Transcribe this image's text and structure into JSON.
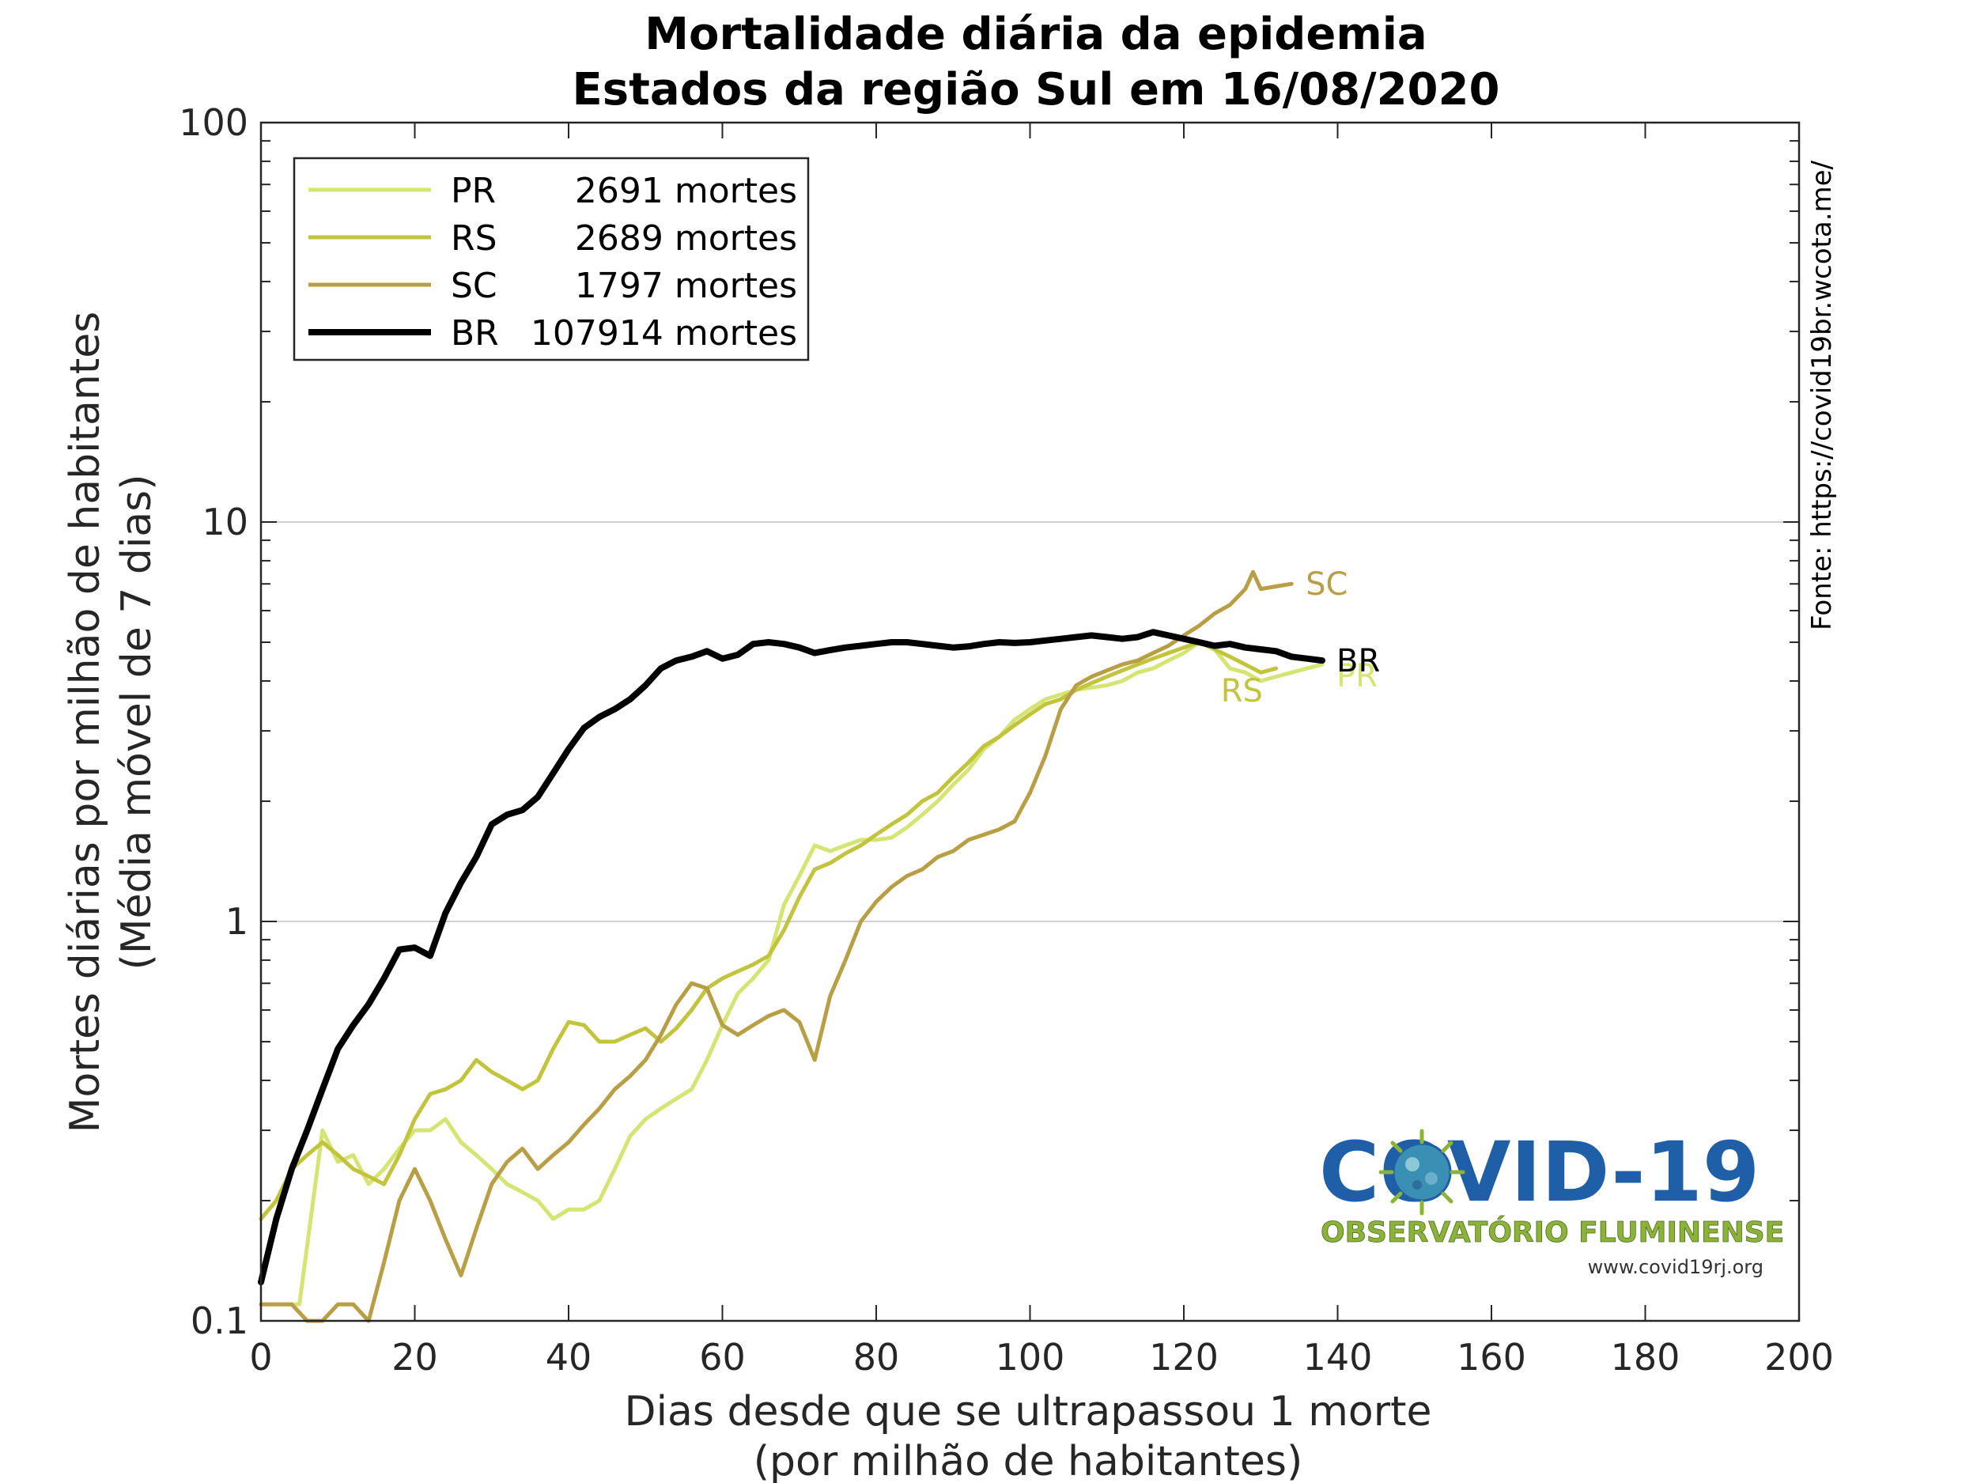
{
  "chart_data": {
    "type": "line",
    "title": "Mortalidade diária da epidemia",
    "subtitle": "Estados da região Sul em 16/08/2020",
    "xlabel": "Dias desde que se ultrapassou 1 morte",
    "xlabel2": "(por milhão de habitantes)",
    "ylabel": "Mortes diárias por milhão de habitantes",
    "ylabel2": "(Média móvel de 7 dias)",
    "xlim": [
      0,
      200
    ],
    "ylim": [
      0.1,
      100
    ],
    "yscale": "log",
    "xticks": [
      0,
      20,
      40,
      60,
      80,
      100,
      120,
      140,
      160,
      180,
      200
    ],
    "xtick_labels": [
      "0",
      "20",
      "40",
      "60",
      "80",
      "100",
      "120",
      "140",
      "160",
      "180",
      "200"
    ],
    "yticks": [
      0.1,
      1,
      10,
      100
    ],
    "ytick_labels": [
      "0.1",
      "1",
      "10",
      "100"
    ],
    "grid": "horizontal major lines",
    "legend_position": "top-left",
    "source": "Fonte: https://covid19br.wcota.me/",
    "series": [
      {
        "name": "PR",
        "legend_label": "PR",
        "legend_count": "2691 mortes",
        "end_label": "PR",
        "color": "#d4e573",
        "x": [
          0,
          5,
          8,
          10,
          12,
          14,
          16,
          18,
          20,
          22,
          24,
          26,
          28,
          30,
          32,
          34,
          36,
          38,
          40,
          42,
          44,
          46,
          48,
          50,
          52,
          54,
          56,
          58,
          60,
          62,
          64,
          66,
          68,
          70,
          72,
          74,
          76,
          78,
          80,
          82,
          84,
          86,
          88,
          90,
          92,
          94,
          96,
          98,
          100,
          102,
          104,
          106,
          108,
          110,
          112,
          114,
          116,
          118,
          120,
          122,
          124,
          126,
          128,
          130,
          132,
          134,
          136,
          138
        ],
        "values": [
          0.11,
          0.11,
          0.3,
          0.25,
          0.26,
          0.22,
          0.24,
          0.27,
          0.3,
          0.3,
          0.32,
          0.28,
          0.26,
          0.24,
          0.22,
          0.21,
          0.2,
          0.18,
          0.19,
          0.19,
          0.2,
          0.24,
          0.29,
          0.32,
          0.34,
          0.36,
          0.38,
          0.45,
          0.55,
          0.66,
          0.72,
          0.8,
          1.1,
          1.3,
          1.55,
          1.5,
          1.55,
          1.6,
          1.6,
          1.62,
          1.72,
          1.85,
          2.0,
          2.2,
          2.4,
          2.7,
          2.9,
          3.2,
          3.4,
          3.6,
          3.7,
          3.8,
          3.85,
          3.9,
          4.0,
          4.2,
          4.3,
          4.5,
          4.7,
          5.0,
          4.8,
          4.3,
          4.2,
          4.0,
          4.1,
          4.2,
          4.3,
          4.4
        ]
      },
      {
        "name": "RS",
        "legend_label": "RS",
        "legend_count": "2689 mortes",
        "end_label": "RS",
        "color": "#c2c43e",
        "x": [
          0,
          2,
          4,
          6,
          8,
          10,
          12,
          14,
          16,
          18,
          20,
          22,
          24,
          26,
          28,
          30,
          32,
          34,
          36,
          38,
          40,
          42,
          44,
          46,
          48,
          50,
          52,
          54,
          56,
          58,
          60,
          62,
          64,
          66,
          68,
          70,
          72,
          74,
          76,
          78,
          80,
          82,
          84,
          86,
          88,
          90,
          92,
          94,
          96,
          98,
          100,
          102,
          104,
          106,
          108,
          110,
          112,
          114,
          116,
          118,
          120,
          122,
          124,
          126,
          128,
          130,
          132
        ],
        "values": [
          0.18,
          0.2,
          0.24,
          0.26,
          0.28,
          0.26,
          0.24,
          0.23,
          0.22,
          0.26,
          0.32,
          0.37,
          0.38,
          0.4,
          0.45,
          0.42,
          0.4,
          0.38,
          0.4,
          0.48,
          0.56,
          0.55,
          0.5,
          0.5,
          0.52,
          0.54,
          0.5,
          0.54,
          0.6,
          0.68,
          0.72,
          0.75,
          0.78,
          0.82,
          0.95,
          1.15,
          1.35,
          1.4,
          1.48,
          1.55,
          1.65,
          1.75,
          1.85,
          2.0,
          2.1,
          2.3,
          2.5,
          2.75,
          2.9,
          3.1,
          3.3,
          3.5,
          3.6,
          3.8,
          3.95,
          4.1,
          4.25,
          4.4,
          4.55,
          4.7,
          4.85,
          5.0,
          4.8,
          4.6,
          4.4,
          4.2,
          4.3
        ]
      },
      {
        "name": "SC",
        "legend_label": "SC",
        "legend_count": "1797 mortes",
        "end_label": "SC",
        "color": "#b89f45",
        "x": [
          0,
          2,
          4,
          6,
          8,
          10,
          12,
          14,
          16,
          18,
          20,
          22,
          24,
          26,
          28,
          30,
          32,
          34,
          36,
          38,
          40,
          42,
          44,
          46,
          48,
          50,
          52,
          54,
          56,
          58,
          60,
          62,
          64,
          66,
          68,
          70,
          72,
          74,
          76,
          78,
          80,
          82,
          84,
          86,
          88,
          90,
          92,
          94,
          96,
          98,
          100,
          102,
          104,
          106,
          108,
          110,
          112,
          114,
          116,
          118,
          120,
          122,
          124,
          126,
          128,
          129,
          130,
          132,
          134
        ],
        "values": [
          0.11,
          0.11,
          0.11,
          0.1,
          0.1,
          0.11,
          0.11,
          0.1,
          0.14,
          0.2,
          0.24,
          0.2,
          0.16,
          0.13,
          0.17,
          0.22,
          0.25,
          0.27,
          0.24,
          0.26,
          0.28,
          0.31,
          0.34,
          0.38,
          0.41,
          0.45,
          0.52,
          0.62,
          0.7,
          0.68,
          0.55,
          0.52,
          0.55,
          0.58,
          0.6,
          0.56,
          0.45,
          0.65,
          0.8,
          1.0,
          1.12,
          1.22,
          1.3,
          1.35,
          1.45,
          1.5,
          1.6,
          1.65,
          1.7,
          1.78,
          2.1,
          2.6,
          3.4,
          3.9,
          4.1,
          4.25,
          4.4,
          4.5,
          4.7,
          4.9,
          5.2,
          5.5,
          5.9,
          6.2,
          6.8,
          7.5,
          6.8,
          6.9,
          7.0
        ]
      },
      {
        "name": "BR",
        "legend_label": "BR",
        "legend_count": "107914 mortes",
        "end_label": "BR",
        "color": "#000000",
        "x": [
          0,
          2,
          4,
          6,
          8,
          10,
          12,
          14,
          16,
          18,
          20,
          22,
          24,
          26,
          28,
          30,
          32,
          34,
          36,
          38,
          40,
          42,
          44,
          46,
          48,
          50,
          52,
          54,
          56,
          58,
          60,
          62,
          64,
          66,
          68,
          70,
          72,
          74,
          76,
          78,
          80,
          82,
          84,
          86,
          88,
          90,
          92,
          94,
          96,
          98,
          100,
          102,
          104,
          106,
          108,
          110,
          112,
          114,
          116,
          118,
          120,
          122,
          124,
          126,
          128,
          130,
          132,
          134,
          136,
          138
        ],
        "values": [
          0.125,
          0.18,
          0.24,
          0.3,
          0.38,
          0.48,
          0.55,
          0.62,
          0.72,
          0.85,
          0.86,
          0.82,
          1.05,
          1.25,
          1.45,
          1.75,
          1.85,
          1.9,
          2.05,
          2.35,
          2.7,
          3.05,
          3.25,
          3.4,
          3.6,
          3.9,
          4.3,
          4.5,
          4.6,
          4.75,
          4.55,
          4.65,
          4.95,
          5.0,
          4.95,
          4.85,
          4.7,
          4.78,
          4.85,
          4.9,
          4.95,
          5.0,
          5.0,
          4.95,
          4.9,
          4.85,
          4.88,
          4.95,
          5.0,
          4.98,
          5.0,
          5.05,
          5.1,
          5.15,
          5.2,
          5.15,
          5.1,
          5.15,
          5.3,
          5.2,
          5.1,
          5.0,
          4.9,
          4.95,
          4.85,
          4.8,
          4.75,
          4.6,
          4.55,
          4.5
        ]
      }
    ]
  },
  "logo": {
    "covid": "COVID-19",
    "observatorio": "OBSERVATÓRIO FLUMINENSE",
    "url": "www.covid19rj.org",
    "virus_icon": "virus-icon",
    "primary_color": "#1f5fa8",
    "secondary_color": "#8bb33a"
  }
}
